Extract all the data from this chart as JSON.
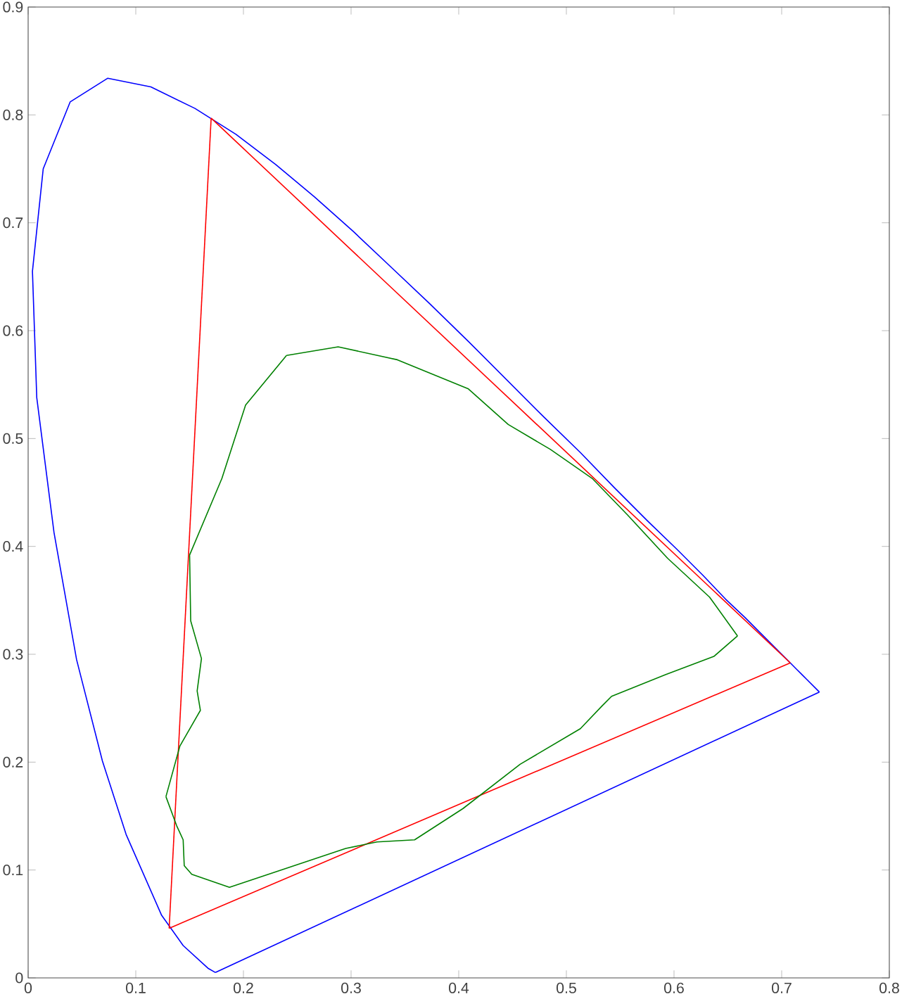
{
  "chart_data": {
    "type": "line",
    "xlim": [
      0,
      0.8
    ],
    "ylim": [
      0,
      0.9
    ],
    "xticks": [
      0,
      0.1,
      0.2,
      0.3,
      0.4,
      0.5,
      0.6,
      0.7,
      0.8
    ],
    "yticks": [
      0,
      0.1,
      0.2,
      0.3,
      0.4,
      0.5,
      0.6,
      0.7,
      0.8,
      0.9
    ],
    "series": [
      {
        "color": "#0000ff",
        "x": [
          0.174,
          0.167,
          0.144,
          0.124,
          0.091,
          0.069,
          0.045,
          0.024,
          0.008,
          0.004,
          0.014,
          0.039,
          0.074,
          0.114,
          0.155,
          0.193,
          0.23,
          0.266,
          0.302,
          0.337,
          0.373,
          0.409,
          0.444,
          0.479,
          0.513,
          0.545,
          0.575,
          0.603,
          0.627,
          0.648,
          0.666,
          0.68,
          0.692,
          0.701,
          0.708,
          0.714,
          0.719,
          0.723,
          0.726,
          0.735
        ],
        "values": [
          0.005,
          0.009,
          0.03,
          0.058,
          0.133,
          0.201,
          0.295,
          0.413,
          0.538,
          0.655,
          0.75,
          0.812,
          0.834,
          0.826,
          0.806,
          0.782,
          0.754,
          0.724,
          0.692,
          0.659,
          0.625,
          0.59,
          0.555,
          0.52,
          0.487,
          0.454,
          0.424,
          0.397,
          0.373,
          0.351,
          0.334,
          0.32,
          0.308,
          0.299,
          0.292,
          0.286,
          0.281,
          0.277,
          0.274,
          0.265
        ]
      },
      {
        "color": "#0000ff",
        "x": [
          0.735,
          0.174
        ],
        "values": [
          0.265,
          0.005
        ]
      },
      {
        "color": "#ff0000",
        "x": [
          0.708,
          0.17
        ],
        "values": [
          0.292,
          0.797
        ]
      },
      {
        "color": "#ff0000",
        "x": [
          0.17,
          0.131
        ],
        "values": [
          0.797,
          0.046
        ]
      },
      {
        "color": "#ff0000",
        "x": [
          0.131,
          0.708
        ],
        "values": [
          0.046,
          0.292
        ]
      },
      {
        "color": "#008000",
        "x": [
          0.24,
          0.288,
          0.343,
          0.409,
          0.446,
          0.485,
          0.524,
          0.557,
          0.594,
          0.633,
          0.659
        ],
        "values": [
          0.577,
          0.585,
          0.573,
          0.546,
          0.513,
          0.49,
          0.463,
          0.429,
          0.389,
          0.353,
          0.317
        ]
      },
      {
        "color": "#008000",
        "x": [
          0.659,
          0.637,
          0.592,
          0.542,
          0.533,
          0.513,
          0.457,
          0.404,
          0.359,
          0.324,
          0.295,
          0.187,
          0.152,
          0.145,
          0.144,
          0.138,
          0.128
        ],
        "values": [
          0.317,
          0.298,
          0.281,
          0.261,
          0.252,
          0.231,
          0.198,
          0.157,
          0.128,
          0.126,
          0.12,
          0.084,
          0.096,
          0.104,
          0.128,
          0.141,
          0.168
        ]
      },
      {
        "color": "#008000",
        "x": [
          0.128,
          0.141,
          0.16,
          0.157,
          0.161,
          0.151,
          0.15,
          0.18,
          0.202,
          0.24
        ],
        "values": [
          0.168,
          0.215,
          0.248,
          0.266,
          0.296,
          0.331,
          0.392,
          0.463,
          0.531,
          0.577
        ]
      }
    ]
  }
}
